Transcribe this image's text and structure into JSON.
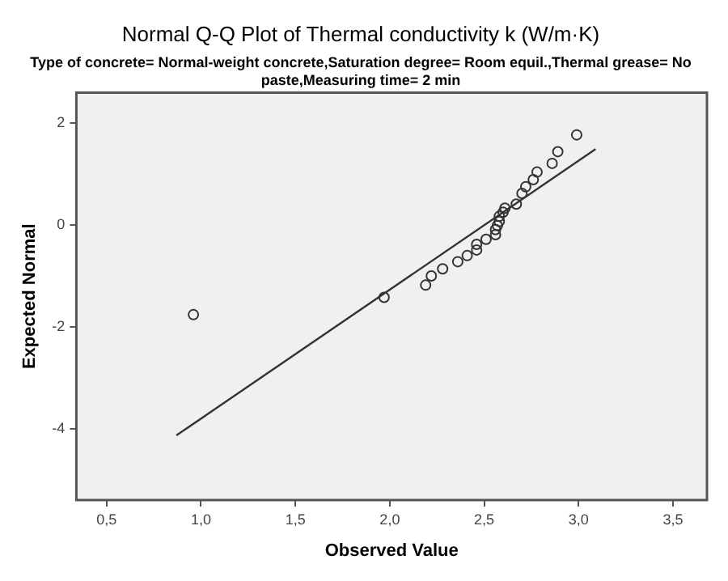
{
  "chart_data": {
    "type": "scatter",
    "title": "Normal Q-Q Plot of Thermal conductivity k (W/m·K)",
    "subtitle": "Type of concrete= Normal-weight concrete,Saturation degree= Room equil.,Thermal grease= No paste,Measuring time= 2 min",
    "xlabel": "Observed Value",
    "ylabel": "Expected Normal",
    "marker": "circle",
    "grid": false,
    "legend": false,
    "xlim": [
      0.34,
      3.68
    ],
    "xticks": [
      {
        "value": 0.5,
        "label": "0,5"
      },
      {
        "value": 1,
        "label": "1,0"
      },
      {
        "value": 1.5,
        "label": "1,5"
      },
      {
        "value": 2,
        "label": "2,0"
      },
      {
        "value": 2.5,
        "label": "2,5"
      },
      {
        "value": 3,
        "label": "3,0"
      },
      {
        "value": 3.5,
        "label": "3,5"
      }
    ],
    "ylim": [
      -5.4,
      2.6
    ],
    "yticks": [
      -4,
      -2,
      0,
      2
    ],
    "series": [
      {
        "color": "#333333",
        "x": [
          0.96,
          1.97,
          2.19,
          2.22,
          2.28,
          2.36,
          2.41,
          2.46,
          2.46,
          2.51,
          2.56,
          2.56,
          2.57,
          2.58,
          2.58,
          2.6,
          2.61,
          2.67,
          2.7,
          2.72,
          2.76,
          2.78,
          2.86,
          2.89,
          2.99
        ],
        "values": [
          -1.76,
          -1.42,
          -1.18,
          -1.0,
          -0.86,
          -0.72,
          -0.6,
          -0.49,
          -0.38,
          -0.28,
          -0.19,
          -0.09,
          -0.01,
          0.07,
          0.17,
          0.25,
          0.33,
          0.41,
          0.62,
          0.75,
          0.89,
          1.04,
          1.21,
          1.44,
          1.77
        ]
      },
      {
        "type": "line",
        "marker": "none",
        "color": "#333333",
        "x": [
          0.87,
          3.09
        ],
        "values": [
          -4.13,
          1.49
        ]
      }
    ]
  }
}
